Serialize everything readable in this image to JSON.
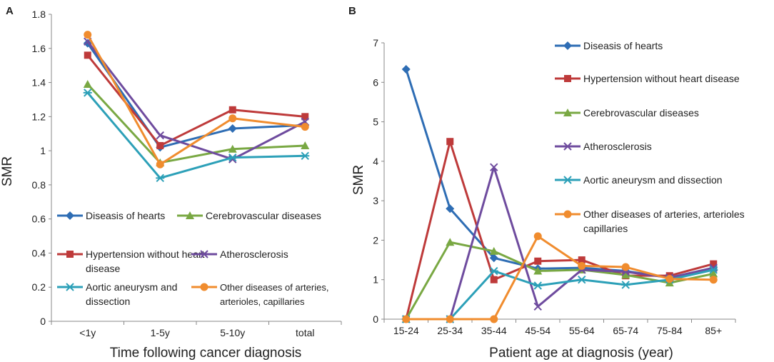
{
  "chart_data": [
    {
      "panel": "A",
      "type": "line",
      "title": "",
      "xlabel": "Time following cancer diagnosis",
      "ylabel": "SMR",
      "categories": [
        "<1y",
        "1-5y",
        "5-10y",
        "total"
      ],
      "ylim": [
        0,
        1.8
      ],
      "ytick_labels": [
        "0",
        "0.2",
        "0.4",
        "0.6",
        "0.8",
        "1",
        "1.2",
        "1.4",
        "1.6",
        "1.8"
      ],
      "legend_position": "inside, lower half",
      "series": [
        {
          "name": "Diseasis of hearts",
          "label_lines": [
            "Diseasis of hearts"
          ],
          "color": "#2E6DB4",
          "marker": "diamond",
          "values": [
            1.63,
            1.02,
            1.13,
            1.15
          ]
        },
        {
          "name": "Cerebrovascular diseases",
          "label_lines": [
            "Cerebrovascular diseases"
          ],
          "color": "#79A843",
          "marker": "triangle",
          "values": [
            1.39,
            0.93,
            1.01,
            1.03
          ]
        },
        {
          "name": "Hypertension without heart disease",
          "label_lines": [
            "Hypertension without heart",
            "disease"
          ],
          "color": "#BE3A3A",
          "marker": "square",
          "values": [
            1.56,
            1.03,
            1.24,
            1.2
          ]
        },
        {
          "name": "Atherosclerosis",
          "label_lines": [
            "Atherosclerosis"
          ],
          "color": "#6E4B9E",
          "marker": "x",
          "values": [
            1.64,
            1.09,
            0.95,
            1.17
          ]
        },
        {
          "name": "Aortic aneurysm and dissection",
          "label_lines": [
            "Aortic aneurysm and",
            "dissection"
          ],
          "color": "#2CA0B8",
          "marker": "star",
          "values": [
            1.34,
            0.84,
            0.96,
            0.97
          ]
        },
        {
          "name": "Other diseases of arteries, arterioles, capillaries",
          "label_lines": [
            "Other diseases of arteries,",
            "arterioles, capillaries"
          ],
          "color": "#F08C2E",
          "marker": "circle",
          "values": [
            1.68,
            0.92,
            1.19,
            1.14
          ]
        }
      ]
    },
    {
      "panel": "B",
      "type": "line",
      "title": "",
      "xlabel": "Patient age at diagnosis (year)",
      "ylabel": "SMR",
      "categories": [
        "15-24",
        "25-34",
        "35-44",
        "45-54",
        "55-64",
        "65-74",
        "75-84",
        "85+"
      ],
      "ylim": [
        0,
        7
      ],
      "ytick_labels": [
        "0",
        "1",
        "2",
        "3",
        "4",
        "5",
        "6",
        "7"
      ],
      "legend_position": "right side",
      "series": [
        {
          "name": "Diseasis of hearts",
          "label_lines": [
            "Diseasis of hearts"
          ],
          "color": "#2E6DB4",
          "marker": "diamond",
          "values": [
            6.33,
            2.8,
            1.55,
            1.28,
            1.3,
            1.22,
            1.05,
            1.3
          ]
        },
        {
          "name": "Hypertension without heart disease",
          "label_lines": [
            "Hypertension without heart disease"
          ],
          "color": "#BE3A3A",
          "marker": "square",
          "values": [
            0,
            4.5,
            1.0,
            1.47,
            1.5,
            1.1,
            1.1,
            1.4
          ]
        },
        {
          "name": "Cerebrovascular diseases",
          "label_lines": [
            "Cerebrovascular diseases"
          ],
          "color": "#79A843",
          "marker": "triangle",
          "values": [
            0,
            1.95,
            1.72,
            1.22,
            1.25,
            1.12,
            0.92,
            1.15
          ]
        },
        {
          "name": "Atherosclerosis",
          "label_lines": [
            "Atherosclerosis"
          ],
          "color": "#6E4B9E",
          "marker": "x",
          "values": [
            0,
            0,
            3.85,
            0.32,
            1.25,
            1.2,
            1.05,
            1.3
          ]
        },
        {
          "name": "Aortic aneurysm and dissection",
          "label_lines": [
            "Aortic aneurysm and dissection"
          ],
          "color": "#2CA0B8",
          "marker": "star",
          "values": [
            0,
            0,
            1.22,
            0.85,
            1.0,
            0.87,
            1.0,
            1.25
          ]
        },
        {
          "name": "Other diseases of arteries, arterioles capillaries",
          "label_lines": [
            "Other diseases of arteries, arterioles",
            "capillaries"
          ],
          "color": "#F08C2E",
          "marker": "circle",
          "values": [
            0,
            0,
            0,
            2.1,
            1.35,
            1.32,
            1.02,
            1.0
          ]
        }
      ]
    }
  ]
}
